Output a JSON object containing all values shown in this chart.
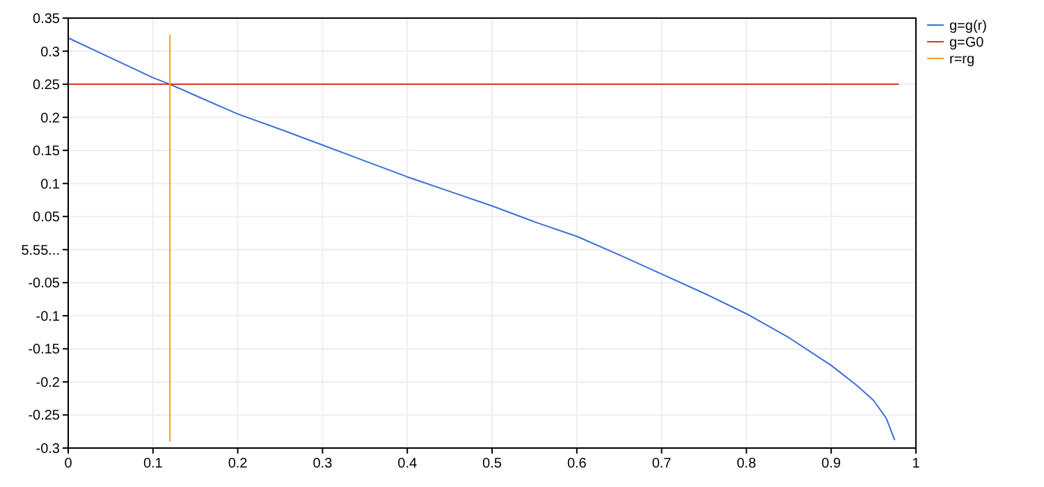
{
  "chart_data": {
    "type": "line",
    "xlim": [
      0,
      1
    ],
    "ylim": [
      -0.3,
      0.35
    ],
    "xticks": [
      0,
      0.1,
      0.2,
      0.3,
      0.4,
      0.5,
      0.6,
      0.7,
      0.8,
      0.9,
      1
    ],
    "yticks": [
      -0.3,
      -0.25,
      -0.2,
      -0.15,
      -0.1,
      -0.05,
      {
        "value": 0,
        "label": "5.55..."
      },
      0.05,
      0.1,
      0.15,
      0.2,
      0.25,
      0.3,
      0.35
    ],
    "grid": true,
    "legend": "right",
    "marker": "none",
    "line_style": "solid",
    "series": [
      {
        "name": "g=g(r)",
        "color": "#3a6fd8",
        "x": [
          0,
          0.05,
          0.1,
          0.12,
          0.15,
          0.2,
          0.25,
          0.3,
          0.35,
          0.4,
          0.45,
          0.5,
          0.55,
          0.6,
          0.65,
          0.7,
          0.75,
          0.8,
          0.85,
          0.9,
          0.93,
          0.95,
          0.965,
          0.975
        ],
        "values": [
          0.32,
          0.29,
          0.26,
          0.25,
          0.233,
          0.205,
          0.182,
          0.158,
          0.134,
          0.11,
          0.088,
          0.066,
          0.042,
          0.02,
          -0.008,
          -0.037,
          -0.066,
          -0.097,
          -0.133,
          -0.175,
          -0.205,
          -0.228,
          -0.255,
          -0.288
        ]
      },
      {
        "name": "g=G0",
        "color": "#d03a1a",
        "x": [
          0,
          0.98
        ],
        "values": [
          0.25,
          0.25
        ]
      },
      {
        "name": "r=rg",
        "color": "#f0a020",
        "x": [
          0.12,
          0.12
        ],
        "values": [
          0.325,
          -0.29
        ]
      }
    ]
  }
}
